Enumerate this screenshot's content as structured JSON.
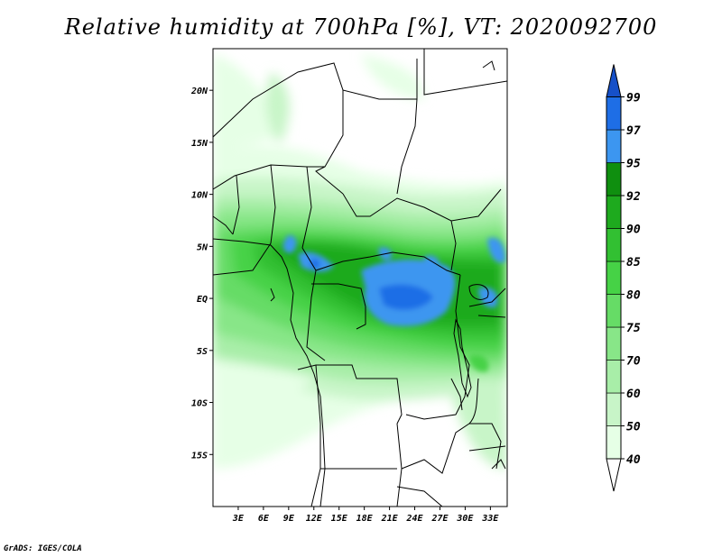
{
  "title": "Relative humidity at 700hPa [%], VT: 2020092700",
  "credit": "GrADS: IGES/COLA",
  "map": {
    "lon_range": [
      0,
      35
    ],
    "lat_range": [
      -20,
      24
    ],
    "lon_ticks": [
      {
        "value": 3,
        "label": "3E"
      },
      {
        "value": 6,
        "label": "6E"
      },
      {
        "value": 9,
        "label": "9E"
      },
      {
        "value": 12,
        "label": "12E"
      },
      {
        "value": 15,
        "label": "15E"
      },
      {
        "value": 18,
        "label": "18E"
      },
      {
        "value": 21,
        "label": "21E"
      },
      {
        "value": 24,
        "label": "24E"
      },
      {
        "value": 27,
        "label": "27E"
      },
      {
        "value": 30,
        "label": "30E"
      },
      {
        "value": 33,
        "label": "33E"
      }
    ],
    "lat_ticks": [
      {
        "value": 20,
        "label": "20N"
      },
      {
        "value": 15,
        "label": "15N"
      },
      {
        "value": 10,
        "label": "10N"
      },
      {
        "value": 5,
        "label": "5N"
      },
      {
        "value": 0,
        "label": "EQ"
      },
      {
        "value": -5,
        "label": "5S"
      },
      {
        "value": -10,
        "label": "10S"
      },
      {
        "value": -15,
        "label": "15S"
      }
    ]
  },
  "colorbar": {
    "levels": [
      {
        "label": "40",
        "color": "#e6ffe6"
      },
      {
        "label": "50",
        "color": "#c8f5c8"
      },
      {
        "label": "60",
        "color": "#a8eea8"
      },
      {
        "label": "70",
        "color": "#88e688"
      },
      {
        "label": "75",
        "color": "#66dc66"
      },
      {
        "label": "80",
        "color": "#46d246"
      },
      {
        "label": "85",
        "color": "#32c032"
      },
      {
        "label": "90",
        "color": "#1eaa1e"
      },
      {
        "label": "92",
        "color": "#0f8f0f"
      },
      {
        "label": "95",
        "color": "#3c96f0"
      },
      {
        "label": "97",
        "color": "#1e6ee6"
      },
      {
        "label": "99",
        "color": "#1650c8"
      }
    ],
    "low_color": "#ffffff"
  }
}
